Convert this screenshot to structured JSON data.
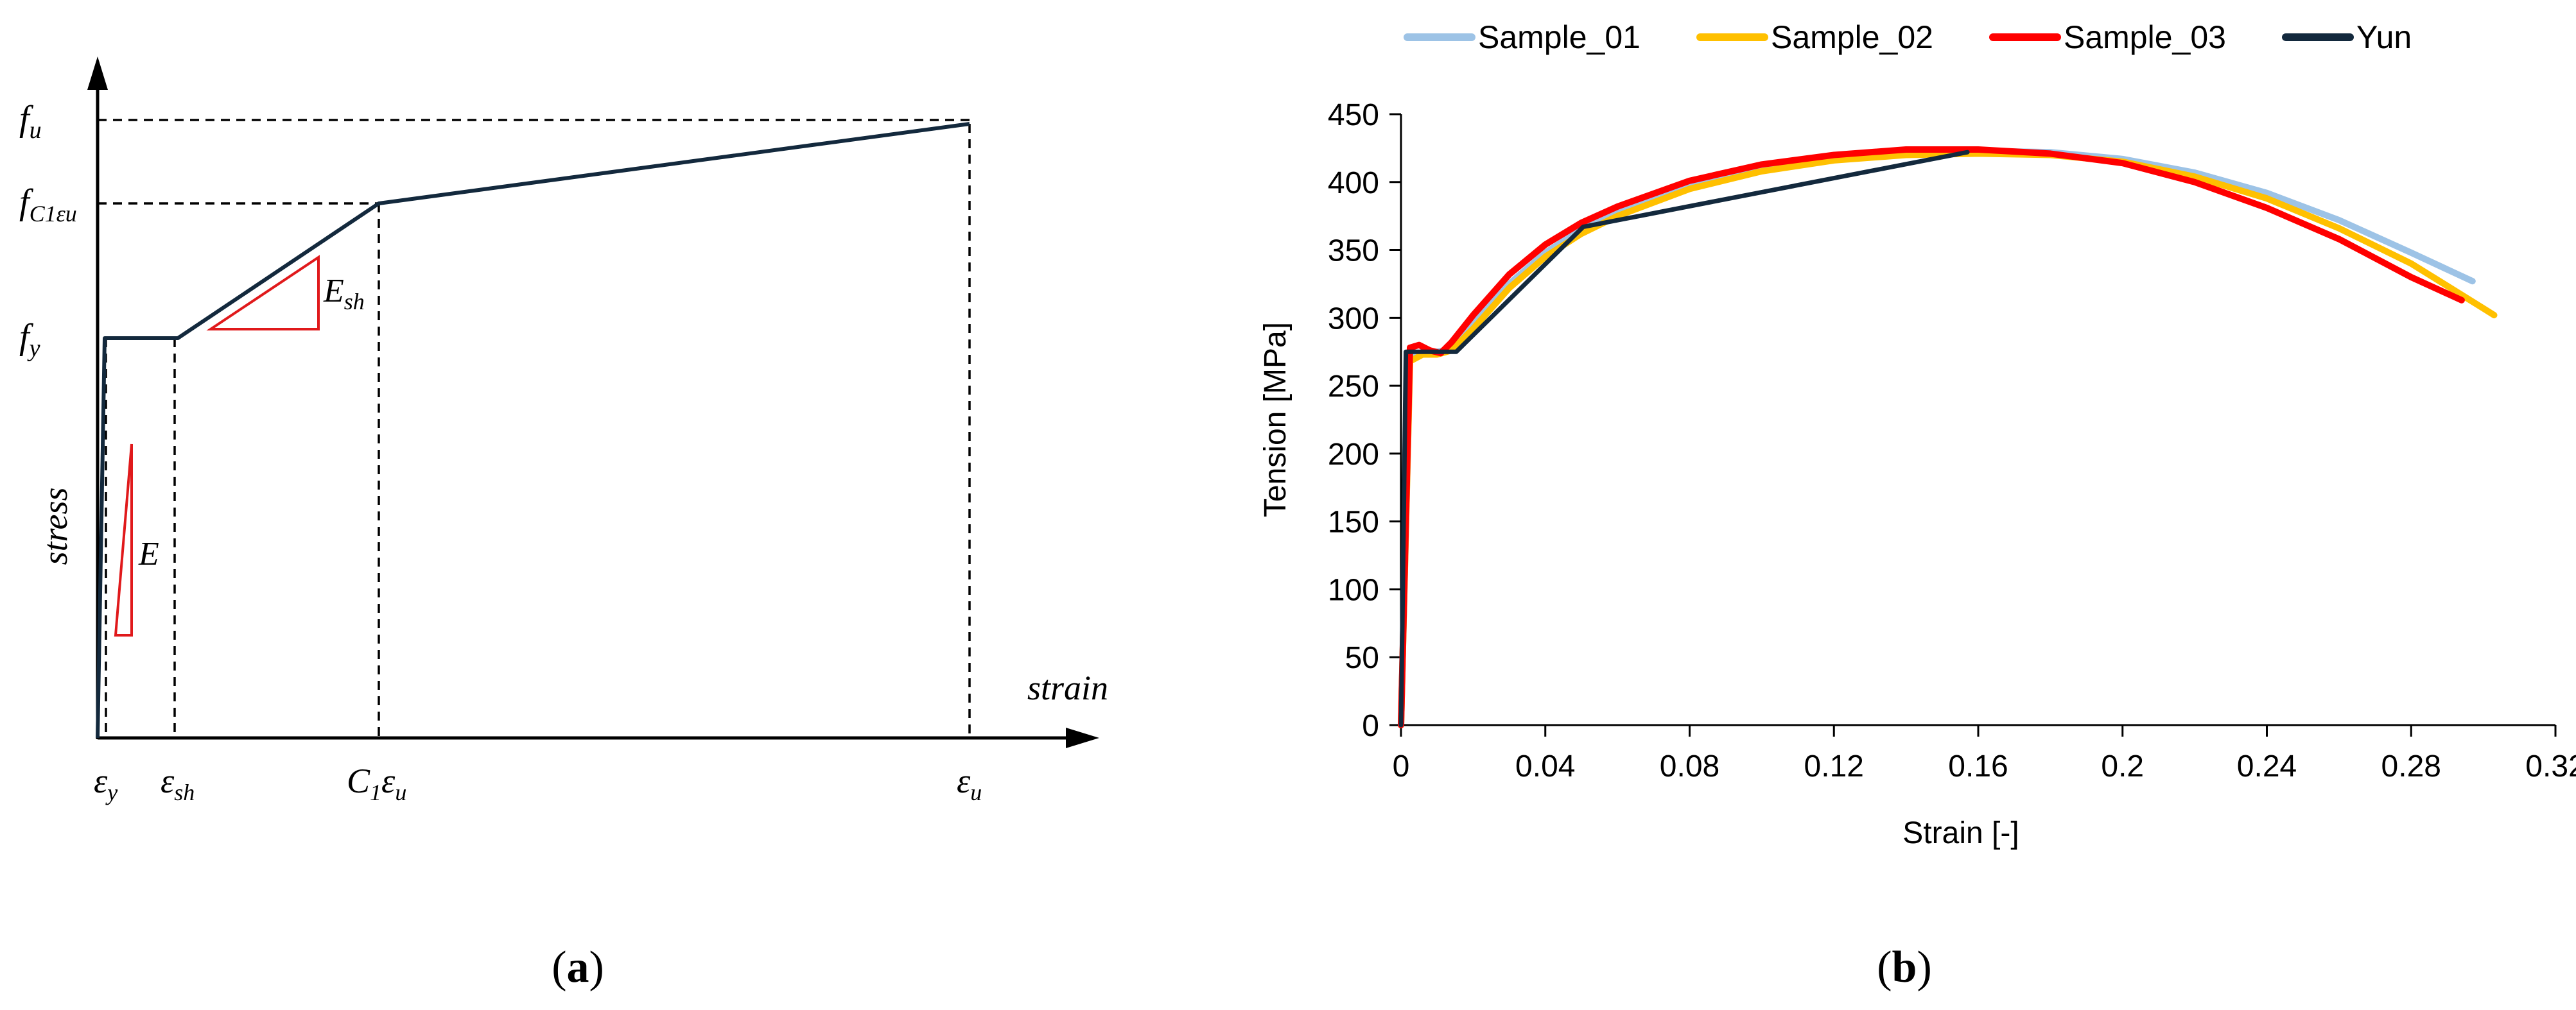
{
  "panel_a": {
    "caption": "a",
    "caption_open": "(",
    "caption_close": ")",
    "axis_x_label": "strain",
    "axis_y_label": "stress",
    "labels": {
      "fu_base": "f",
      "fu_sub": "u",
      "fc_base": "f",
      "fc_sub": "C1εu",
      "fy_base": "f",
      "fy_sub": "y",
      "esh_base": "E",
      "esh_sub": "sh",
      "e_label": "E",
      "ey_base": "ε",
      "ey_sub": "y",
      "esh2_base": "ε",
      "esh2_sub": "sh",
      "c1_base": "C",
      "c1_sub": "1",
      "c1_eps": "ε",
      "c1_eps_sub": "u",
      "eu_base": "ε",
      "eu_sub": "u"
    },
    "colors": {
      "curve": "#13293d",
      "triangle": "#e0191b",
      "axis": "#000000"
    }
  },
  "panel_b": {
    "caption": "b",
    "caption_open": "(",
    "caption_close": ")"
  },
  "chart_data": [
    {
      "type": "line",
      "title": "",
      "xlabel": "strain",
      "ylabel": "stress",
      "schematic": true,
      "series": [
        {
          "color": "#13293d",
          "x": [
            "0",
            "εy",
            "εsh",
            "C1εu",
            "εu"
          ],
          "y": [
            "0",
            "fy",
            "fy",
            "fC1εu",
            "fu"
          ]
        }
      ],
      "x_ticks": [
        "εy",
        "εsh",
        "C1εu",
        "εu"
      ],
      "y_ticks": [
        "fu",
        "fC1εu",
        "fy"
      ],
      "annotations": [
        "E",
        "Esh"
      ]
    },
    {
      "type": "line",
      "title": "",
      "xlabel": "Strain [-]",
      "ylabel": "Tension [MPa]",
      "xlim": [
        0,
        0.32
      ],
      "ylim": [
        0,
        450
      ],
      "x_ticks": [
        "0",
        "0.04",
        "0.08",
        "0.12",
        "0.16",
        "0.2",
        "0.24",
        "0.28",
        "0.32"
      ],
      "y_ticks": [
        "0",
        "50",
        "100",
        "150",
        "200",
        "250",
        "300",
        "350",
        "400",
        "450"
      ],
      "grid": false,
      "legend_position": "top",
      "series": [
        {
          "name": "Sample_01",
          "color": "#9dc3e6",
          "x": [
            0,
            0.0025,
            0.006,
            0.01,
            0.014,
            0.02,
            0.03,
            0.04,
            0.05,
            0.06,
            0.08,
            0.1,
            0.12,
            0.14,
            0.16,
            0.18,
            0.2,
            0.22,
            0.24,
            0.26,
            0.28,
            0.297
          ],
          "y": [
            0,
            270,
            275,
            275,
            277,
            295,
            325,
            348,
            365,
            378,
            398,
            411,
            418,
            422,
            423,
            422,
            417,
            407,
            392,
            372,
            348,
            327
          ]
        },
        {
          "name": "Sample_02",
          "color": "#ffc000",
          "x": [
            0,
            0.0025,
            0.006,
            0.01,
            0.014,
            0.02,
            0.03,
            0.04,
            0.05,
            0.06,
            0.08,
            0.1,
            0.12,
            0.14,
            0.16,
            0.18,
            0.2,
            0.22,
            0.24,
            0.26,
            0.28,
            0.3,
            0.303
          ],
          "y": [
            0,
            268,
            273,
            273,
            276,
            292,
            322,
            345,
            362,
            375,
            395,
            408,
            416,
            420,
            421,
            420,
            415,
            404,
            388,
            366,
            340,
            307,
            302
          ]
        },
        {
          "name": "Sample_03",
          "color": "#ff0000",
          "x": [
            0,
            0.0025,
            0.005,
            0.008,
            0.011,
            0.014,
            0.02,
            0.03,
            0.04,
            0.05,
            0.06,
            0.08,
            0.1,
            0.12,
            0.14,
            0.16,
            0.18,
            0.2,
            0.22,
            0.24,
            0.26,
            0.28,
            0.294
          ],
          "y": [
            0,
            278,
            280,
            276,
            274,
            282,
            302,
            332,
            354,
            370,
            382,
            401,
            413,
            420,
            424,
            424,
            421,
            414,
            400,
            381,
            358,
            330,
            313
          ]
        },
        {
          "name": "Yun",
          "color": "#13293d",
          "x": [
            0,
            0.00135,
            0.0153,
            0.0505,
            0.157
          ],
          "y": [
            0,
            275,
            275,
            367,
            422
          ]
        }
      ]
    }
  ]
}
